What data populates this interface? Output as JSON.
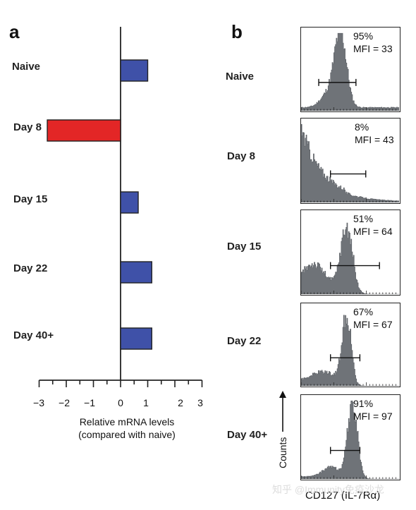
{
  "panels": {
    "a_label": "a",
    "b_label": "b"
  },
  "colors": {
    "bar_positive": "#3f51a8",
    "bar_negative": "#e32626",
    "histogram_fill": "#6f7378",
    "axis": "#222222"
  },
  "watermark": "知乎 @Immunity免疫沙龙",
  "chart_data": [
    {
      "type": "bar",
      "orientation": "horizontal",
      "categories": [
        "Naive",
        "Day 8",
        "Day 15",
        "Day 22",
        "Day 40+"
      ],
      "values": [
        1.0,
        -2.7,
        0.65,
        1.15,
        1.15
      ],
      "xlim": [
        -3,
        3
      ],
      "xticks": [
        "−3",
        "−2",
        "−1",
        "0",
        "1",
        "2",
        "3"
      ],
      "xlabel_line1": "Relative mRNA levels",
      "xlabel_line2": "(compared with naive)"
    },
    {
      "type": "histogram",
      "rows": [
        "Naive",
        "Day 8",
        "Day 15",
        "Day 22",
        "Day 40+"
      ],
      "percents": [
        "95%",
        "8%",
        "51%",
        "67%",
        "91%"
      ],
      "mfi": [
        "MFI = 33",
        "MFI = 43",
        "MFI = 64",
        "MFI = 67",
        "MFI = 97"
      ],
      "gate": [
        [
          0.18,
          0.56
        ],
        [
          0.3,
          0.66
        ],
        [
          0.3,
          0.8
        ],
        [
          0.3,
          0.6
        ],
        [
          0.3,
          0.6
        ]
      ],
      "y_label": "Counts",
      "x_label": "CD127 (IL-7Rα)"
    }
  ]
}
